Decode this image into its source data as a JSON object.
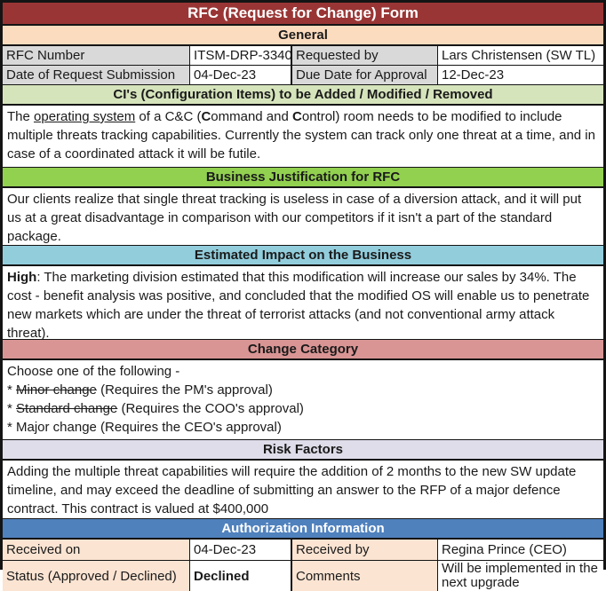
{
  "title": "RFC (Request for Change) Form",
  "colors": {
    "title_bg": "#993635",
    "title_text": "#ffffff",
    "general_header_bg": "#fcdcbe",
    "general_label_bg": "#d9d9d9",
    "ci_header_bg": "#d6e4bc",
    "justification_header_bg": "#92d050",
    "impact_header_bg": "#92cddc",
    "category_header_bg": "#d99594",
    "risk_header_bg": "#dfdde9",
    "authorization_header_bg": "#4f81bd",
    "authorization_label_bg": "#fbe4d2",
    "border": "#141414"
  },
  "sections": {
    "general": {
      "header": "General",
      "rows": [
        {
          "label1": "RFC Number",
          "value1": "ITSM-DRP-3340",
          "label2": "Requested by",
          "value2": "Lars Christensen (SW TL)"
        },
        {
          "label1": "Date of Request Submission",
          "value1": "04-Dec-23",
          "label2": "Due Date for Approval",
          "value2": "12-Dec-23"
        }
      ]
    },
    "ci": {
      "header": "CI's (Configuration Items) to be Added / Modified / Removed",
      "body_html": "The <u>operating system</u> of a C&amp;C (<b>C</b>ommand and <b>C</b>ontrol) room needs to be modified to include multiple threats tracking capabilities. Currently the system can track only one threat at a time, and in case of a coordinated attack it will be futile."
    },
    "justification": {
      "header": "Business Justification for RFC",
      "body_html": "Our clients realize that single threat tracking is useless in case of a diversion attack, and it will put us at a great disadvantage in comparison with our competitors if it isn't a part of the standard package."
    },
    "impact": {
      "header": "Estimated Impact on the Business",
      "body_html": "<b>High</b>: The marketing division estimated that this modification will increase our sales by 34%. The cost - benefit analysis was positive, and concluded that the modified OS will enable us to penetrate new markets which are under the threat of terrorist attacks (and not conventional army attack threat)."
    },
    "category": {
      "header": "Change Category",
      "body_html": "Choose one of the following -<br>* <s>Minor change</s> (Requires the PM's approval)<br>* <s>Standard change</s> (Requires the COO's approval)<br>* Major change (Requires the CEO's approval)"
    },
    "risk": {
      "header": "Risk Factors",
      "body_html": "Adding the multiple threat capabilities will require the addition of 2 months to the new SW update timeline, and may exceed the deadline of submitting an answer to the RFP of a major defence contract. This contract is valued at $400,000"
    },
    "authorization": {
      "header": "Authorization Information",
      "rows": [
        {
          "label1": "Received on",
          "value1": "04-Dec-23",
          "label2": "Received by",
          "value2": "Regina Prince (CEO)"
        },
        {
          "label1": "Status (Approved / Declined)",
          "value1": "Declined",
          "label2": "Comments",
          "value2": "Will be implemented in the next upgrade"
        }
      ]
    }
  }
}
